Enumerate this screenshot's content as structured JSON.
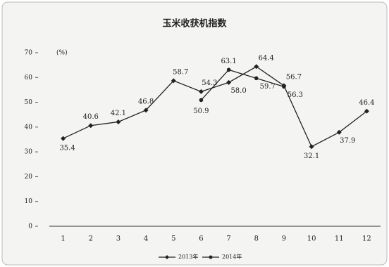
{
  "chart_data": {
    "type": "line",
    "title": "玉米收获机指数",
    "y_unit": "(%)",
    "categories": [
      "1",
      "2",
      "3",
      "4",
      "5",
      "6",
      "7",
      "8",
      "9",
      "10",
      "11",
      "12"
    ],
    "series": [
      {
        "name": "2013年",
        "color": "#222222",
        "marker": "diamond",
        "values": [
          35.4,
          40.6,
          42.1,
          46.8,
          58.7,
          54.3,
          58.0,
          64.4,
          56.7,
          32.1,
          37.9,
          46.4
        ],
        "value_labels": [
          "35.4",
          "40.6",
          "42.1",
          "46.8",
          "58.7",
          "54.3",
          "58.0",
          "64.4",
          "56.7",
          "32.1",
          "37.9",
          "46.4"
        ]
      },
      {
        "name": "2014年",
        "color": "#222222",
        "marker": "circle",
        "values": [
          null,
          null,
          null,
          null,
          null,
          50.9,
          63.1,
          59.7,
          56.3,
          null,
          null,
          null
        ],
        "value_labels": [
          null,
          null,
          null,
          null,
          null,
          "50.9",
          "63.1",
          "59.7",
          "56.3",
          null,
          null,
          null
        ]
      }
    ],
    "ylim": [
      0,
      70
    ],
    "yticks": [
      0,
      10,
      20,
      30,
      40,
      50,
      60,
      70
    ],
    "grid": false,
    "legend": "bottom"
  }
}
